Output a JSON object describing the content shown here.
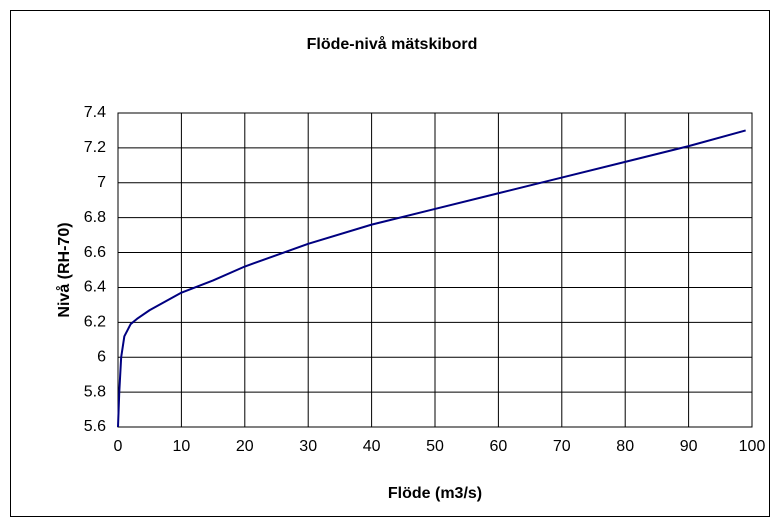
{
  "chart_data": {
    "type": "line",
    "title": "Flöde-nivå mätskibord",
    "x_label": "Flöde (m3/s)",
    "y_label": "Nivå (RH-70)",
    "x": [
      0,
      0.2,
      0.5,
      1,
      2,
      3,
      5,
      10,
      15,
      20,
      30,
      40,
      50,
      60,
      70,
      80,
      90,
      99
    ],
    "series": [
      {
        "color": "#000080",
        "values": [
          5.6,
          5.8,
          6.0,
          6.12,
          6.19,
          6.22,
          6.27,
          6.37,
          6.44,
          6.52,
          6.65,
          6.76,
          6.85,
          6.94,
          7.03,
          7.12,
          7.21,
          7.3
        ]
      }
    ],
    "xlim": [
      0,
      100
    ],
    "xticks": [
      0,
      10,
      20,
      30,
      40,
      50,
      60,
      70,
      80,
      90,
      100
    ],
    "ylim": [
      5.6,
      7.4
    ],
    "yticks": [
      5.6,
      5.8,
      6,
      6.2,
      6.4,
      6.6,
      6.8,
      7,
      7.2,
      7.4
    ],
    "grid": true
  }
}
